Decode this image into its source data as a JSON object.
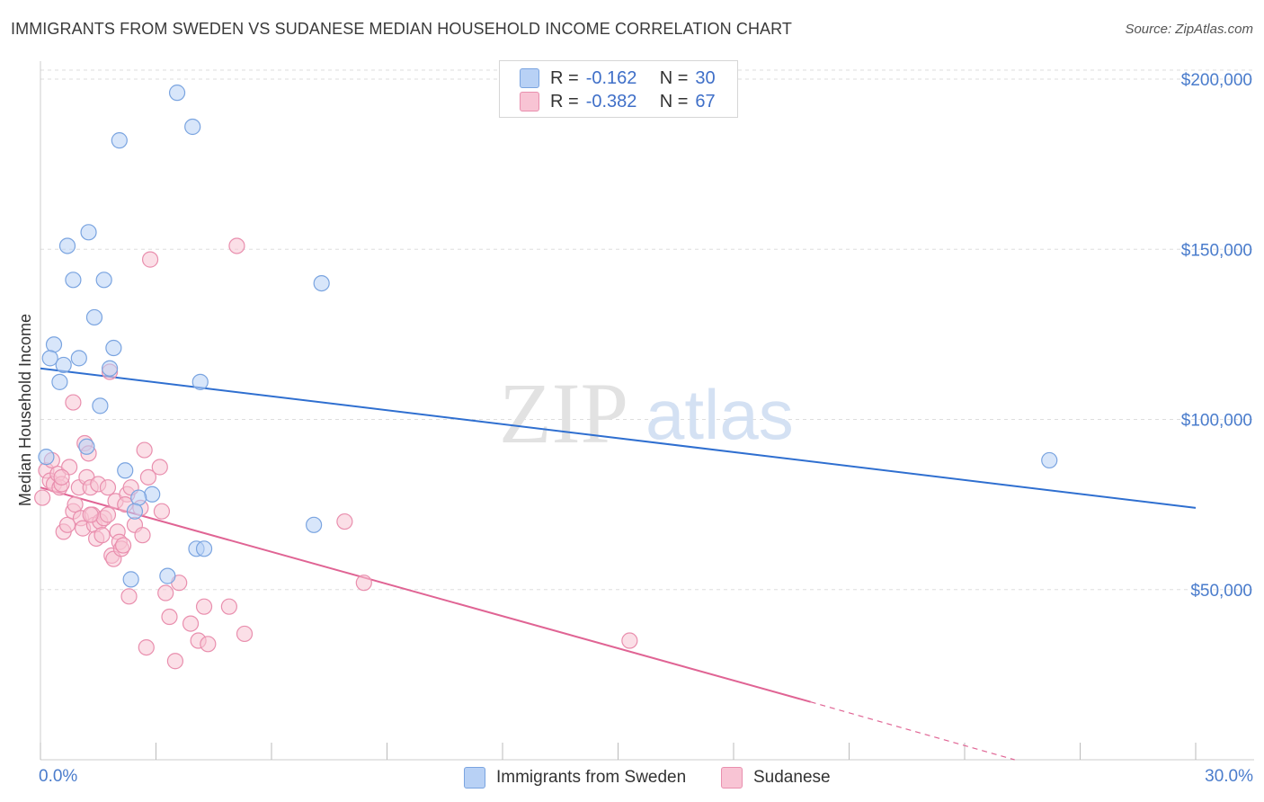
{
  "title": "IMMIGRANTS FROM SWEDEN VS SUDANESE MEDIAN HOUSEHOLD INCOME CORRELATION CHART",
  "source": "Source: ZipAtlas.com",
  "watermark": {
    "zip": "ZIP",
    "atlas": "atlas"
  },
  "legend": {
    "r_label": "R =",
    "n_label": "N =",
    "series": [
      {
        "name": "Immigrants from Sweden",
        "r": "-0.162",
        "n": "30"
      },
      {
        "name": "Sudanese",
        "r": "-0.382",
        "n": "67"
      }
    ]
  },
  "colors": {
    "blue_fill": "#b8d1f5",
    "blue_stroke": "#7aa4e0",
    "blue_line": "#2f6fd0",
    "pink_fill": "#f8c4d4",
    "pink_stroke": "#e98fae",
    "pink_line": "#e06494",
    "tick_color": "#4a7ccc",
    "grid": "#dddddd"
  },
  "chart_data": {
    "type": "scatter",
    "title": "IMMIGRANTS FROM SWEDEN VS SUDANESE MEDIAN HOUSEHOLD INCOME CORRELATION CHART",
    "xlabel": "",
    "ylabel": "Median Household Income",
    "xlim": [
      0,
      30
    ],
    "ylim": [
      0,
      200000
    ],
    "x_ticks": [
      {
        "value": 0,
        "label": "0.0%"
      },
      {
        "value": 30,
        "label": "30.0%"
      }
    ],
    "y_ticks": [
      {
        "value": 50000,
        "label": "$50,000"
      },
      {
        "value": 100000,
        "label": "$100,000"
      },
      {
        "value": 150000,
        "label": "$150,000"
      },
      {
        "value": 200000,
        "label": "$200,000"
      }
    ],
    "series": [
      {
        "name": "Immigrants from Sweden",
        "color": "blue",
        "trend": {
          "x": [
            0,
            30
          ],
          "y": [
            115000,
            74000
          ]
        },
        "points": [
          [
            3.55,
            196000
          ],
          [
            2.05,
            182000
          ],
          [
            3.95,
            186000
          ],
          [
            1.25,
            155000
          ],
          [
            0.7,
            151000
          ],
          [
            0.85,
            141000
          ],
          [
            1.65,
            141000
          ],
          [
            7.3,
            140000
          ],
          [
            1.4,
            130000
          ],
          [
            0.35,
            122000
          ],
          [
            1.9,
            121000
          ],
          [
            0.25,
            118000
          ],
          [
            1.0,
            118000
          ],
          [
            0.6,
            116000
          ],
          [
            1.8,
            115000
          ],
          [
            0.5,
            111000
          ],
          [
            4.15,
            111000
          ],
          [
            1.55,
            104000
          ],
          [
            1.2,
            92000
          ],
          [
            0.15,
            89000
          ],
          [
            2.2,
            85000
          ],
          [
            2.9,
            78000
          ],
          [
            2.55,
            77000
          ],
          [
            2.45,
            73000
          ],
          [
            7.1,
            69000
          ],
          [
            4.05,
            62000
          ],
          [
            4.25,
            62000
          ],
          [
            2.35,
            53000
          ],
          [
            3.3,
            54000
          ],
          [
            26.2,
            88000
          ]
        ]
      },
      {
        "name": "Sudanese",
        "color": "pink",
        "trend": {
          "x": [
            0,
            20
          ],
          "y": [
            80000,
            17000
          ]
        },
        "trend_ext": {
          "x": [
            20,
            25.3
          ],
          "y": [
            17000,
            0
          ]
        },
        "points": [
          [
            0.05,
            77000
          ],
          [
            0.15,
            85000
          ],
          [
            0.25,
            82000
          ],
          [
            0.3,
            88000
          ],
          [
            0.35,
            81000
          ],
          [
            0.45,
            84000
          ],
          [
            0.5,
            80000
          ],
          [
            0.55,
            81000
          ],
          [
            0.6,
            67000
          ],
          [
            0.75,
            86000
          ],
          [
            0.7,
            69000
          ],
          [
            0.85,
            73000
          ],
          [
            0.85,
            105000
          ],
          [
            0.9,
            75000
          ],
          [
            1.0,
            80000
          ],
          [
            1.05,
            71000
          ],
          [
            1.1,
            68000
          ],
          [
            1.15,
            93000
          ],
          [
            1.2,
            83000
          ],
          [
            1.25,
            90000
          ],
          [
            1.3,
            80000
          ],
          [
            1.35,
            72000
          ],
          [
            1.4,
            69000
          ],
          [
            1.45,
            65000
          ],
          [
            1.5,
            81000
          ],
          [
            1.55,
            70000
          ],
          [
            1.6,
            66000
          ],
          [
            1.65,
            71000
          ],
          [
            1.75,
            72000
          ],
          [
            1.8,
            114000
          ],
          [
            1.85,
            60000
          ],
          [
            1.9,
            59000
          ],
          [
            1.95,
            76000
          ],
          [
            2.0,
            67000
          ],
          [
            2.05,
            64000
          ],
          [
            2.1,
            62000
          ],
          [
            2.15,
            63000
          ],
          [
            2.25,
            78000
          ],
          [
            2.3,
            48000
          ],
          [
            2.35,
            80000
          ],
          [
            2.45,
            69000
          ],
          [
            2.6,
            74000
          ],
          [
            2.65,
            66000
          ],
          [
            2.7,
            91000
          ],
          [
            2.75,
            33000
          ],
          [
            2.8,
            83000
          ],
          [
            2.85,
            147000
          ],
          [
            3.1,
            86000
          ],
          [
            3.15,
            73000
          ],
          [
            3.25,
            49000
          ],
          [
            3.35,
            42000
          ],
          [
            3.5,
            29000
          ],
          [
            3.6,
            52000
          ],
          [
            3.9,
            40000
          ],
          [
            4.1,
            35000
          ],
          [
            4.25,
            45000
          ],
          [
            4.35,
            34000
          ],
          [
            4.9,
            45000
          ],
          [
            5.1,
            151000
          ],
          [
            5.3,
            37000
          ],
          [
            7.9,
            70000
          ],
          [
            8.4,
            52000
          ],
          [
            15.3,
            35000
          ],
          [
            0.55,
            83000
          ],
          [
            1.75,
            80000
          ],
          [
            2.2,
            75000
          ],
          [
            1.3,
            72000
          ]
        ]
      }
    ],
    "legend_position": "top-center"
  }
}
